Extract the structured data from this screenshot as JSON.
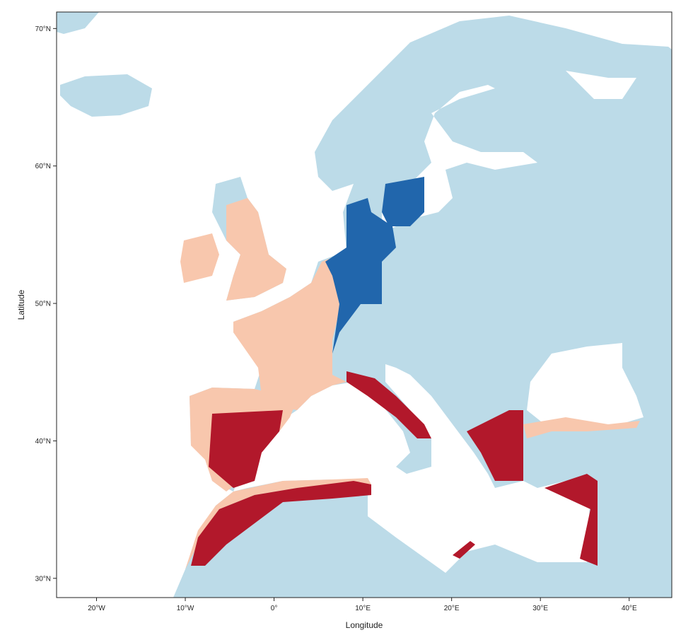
{
  "map": {
    "x_axis": {
      "label": "Longitude",
      "lim": [
        -24.5,
        44.8
      ],
      "ticks": [
        {
          "value": -20,
          "label": "20°W"
        },
        {
          "value": -10,
          "label": "10°W"
        },
        {
          "value": 0,
          "label": "0°"
        },
        {
          "value": 10,
          "label": "10°E"
        },
        {
          "value": 20,
          "label": "20°E"
        },
        {
          "value": 30,
          "label": "30°E"
        },
        {
          "value": 40,
          "label": "40°E"
        }
      ]
    },
    "y_axis": {
      "label": "Latitude",
      "lim": [
        28.6,
        71.2
      ],
      "ticks": [
        {
          "value": 30,
          "label": "30°N"
        },
        {
          "value": 40,
          "label": "40°N"
        },
        {
          "value": 50,
          "label": "50°N"
        },
        {
          "value": 60,
          "label": "60°N"
        },
        {
          "value": 70,
          "label": "70°N"
        }
      ]
    }
  }
}
